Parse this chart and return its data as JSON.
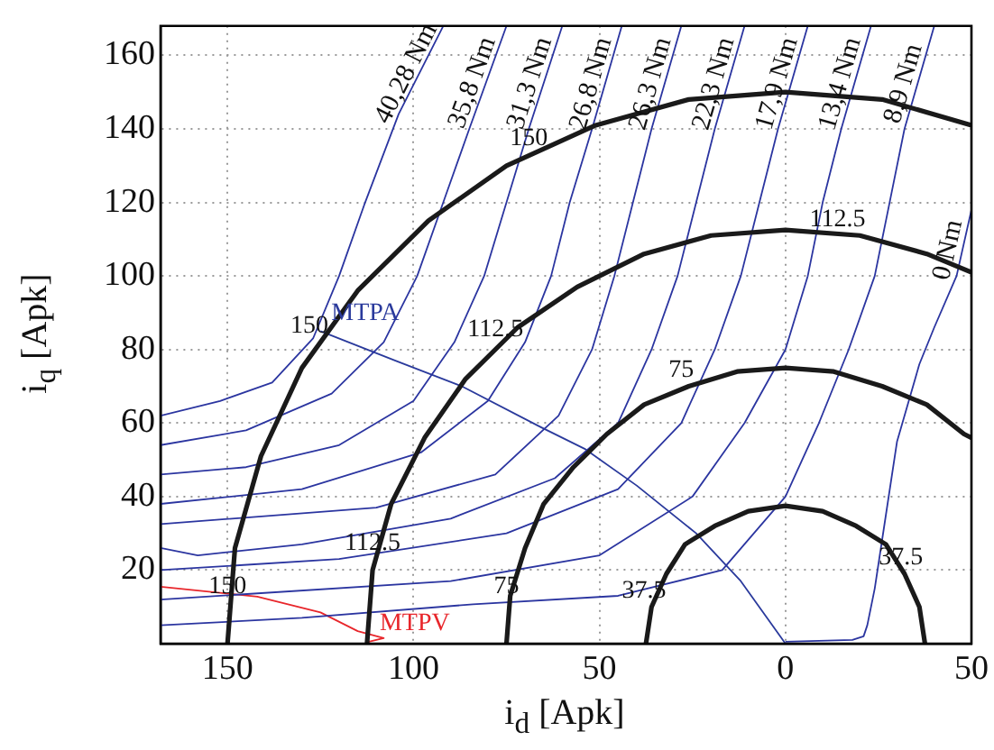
{
  "chart_data": {
    "type": "line",
    "xlabel": "i$_{d}$ [Apk]",
    "ylabel": "i$_{q}$ [Apk]",
    "xlim": [
      -168,
      50
    ],
    "xticks": [
      {
        "value": -150,
        "label": "150"
      },
      {
        "value": -100,
        "label": "100"
      },
      {
        "value": -50,
        "label": "50"
      },
      0,
      50
    ],
    "ylim": [
      0,
      168
    ],
    "yticks": [
      20,
      40,
      60,
      80,
      100,
      120,
      140,
      160
    ],
    "grid": true,
    "legend": false,
    "annotations": [
      {
        "text": "150",
        "x": -69,
        "y": 133
      },
      {
        "text": "150",
        "x": -128,
        "y": 82
      },
      {
        "text": "150",
        "x": -150,
        "y": 11
      },
      {
        "text": "112.5",
        "x": 14,
        "y": 111
      },
      {
        "text": "112.5",
        "x": -78,
        "y": 81
      },
      {
        "text": "112.5",
        "x": -111,
        "y": 23
      },
      {
        "text": "75",
        "x": -28,
        "y": 70
      },
      {
        "text": "75",
        "x": -75,
        "y": 11
      },
      {
        "text": "37.5",
        "x": -38,
        "y": 10
      },
      {
        "text": "37.5",
        "x": 31,
        "y": 19
      }
    ],
    "series": [
      {
        "color": "#1a1a1a",
        "x": [
          -150,
          -148,
          -141,
          -130,
          -115,
          -96,
          -75,
          -51,
          -26,
          0,
          26,
          50
        ],
        "values": [
          0,
          26,
          51,
          75,
          96,
          115,
          130,
          141,
          148,
          150,
          148,
          141
        ]
      },
      {
        "color": "#1a1a1a",
        "x": [
          -112.5,
          -111,
          -106,
          -97,
          -86,
          -72,
          -56,
          -38,
          -20,
          0,
          20,
          38,
          50
        ],
        "values": [
          0,
          20,
          38,
          56,
          72,
          86,
          97,
          106,
          111,
          112.5,
          111,
          106,
          101
        ]
      },
      {
        "color": "#1a1a1a",
        "x": [
          -75,
          -74,
          -70,
          -65,
          -57,
          -48,
          -38,
          -26,
          -13,
          0,
          13,
          26,
          38,
          48,
          50
        ],
        "values": [
          0,
          13,
          26,
          38,
          48,
          57,
          65,
          70,
          74,
          75,
          74,
          70,
          65,
          57,
          56
        ]
      },
      {
        "color": "#1a1a1a",
        "x": [
          -37.5,
          -36,
          -32,
          -27,
          -19,
          -10,
          0,
          10,
          19,
          27,
          32,
          36,
          37.5
        ],
        "values": [
          0,
          10,
          19,
          27,
          32,
          36,
          37.5,
          36,
          32,
          27,
          19,
          10,
          0
        ]
      },
      {
        "name": "40,28 Nm",
        "color": "#2b35a0",
        "x": [
          -92,
          -104,
          -113,
          -120,
          -127,
          -138,
          -152,
          -168
        ],
        "values": [
          168,
          144,
          120,
          100,
          83,
          71,
          66,
          62
        ]
      },
      {
        "name": "35,8 Nm",
        "color": "#2b35a0",
        "x": [
          -75,
          -85,
          -92,
          -99,
          -108,
          -122,
          -145,
          -168
        ],
        "values": [
          168,
          140,
          120,
          100,
          82,
          68,
          58,
          54
        ]
      },
      {
        "name": "31,3 Nm",
        "color": "#2b35a0",
        "x": [
          -60,
          -69,
          -75,
          -81,
          -89,
          -100,
          -120,
          -145,
          -168
        ],
        "values": [
          168,
          140,
          120,
          100,
          82,
          66,
          54,
          48,
          46
        ]
      },
      {
        "name": "26,8 Nm",
        "color": "#2b35a0",
        "x": [
          -44,
          -52,
          -58,
          -63,
          -70,
          -80,
          -98,
          -130,
          -168
        ],
        "values": [
          168,
          140,
          120,
          100,
          82,
          66,
          52,
          42,
          38
        ]
      },
      {
        "name": "26,3 Nm",
        "color": "#2b35a0",
        "x": [
          -28,
          -36,
          -41,
          -46,
          -52,
          -61,
          -78,
          -110,
          -168
        ],
        "values": [
          168,
          140,
          120,
          100,
          80,
          62,
          46,
          37,
          32.5
        ]
      },
      {
        "name": "22,3 Nm",
        "color": "#2b35a0",
        "x": [
          -11,
          -19,
          -24,
          -29,
          -36,
          -45,
          -62,
          -90,
          -130,
          -158,
          -168
        ],
        "values": [
          168,
          140,
          120,
          100,
          80,
          60,
          45,
          34,
          27,
          24,
          26
        ]
      },
      {
        "name": "17,9 Nm",
        "color": "#2b35a0",
        "x": [
          6,
          -2,
          -7,
          -12,
          -19,
          -28,
          -45,
          -75,
          -120,
          -168
        ],
        "values": [
          168,
          140,
          120,
          100,
          80,
          60,
          42,
          30,
          23,
          20
        ]
      },
      {
        "name": "13,4 Nm",
        "color": "#2b35a0",
        "x": [
          23,
          15,
          10,
          6,
          0,
          -11,
          -25,
          -50,
          -90,
          -168
        ],
        "values": [
          168,
          140,
          120,
          100,
          80,
          60,
          40,
          24,
          17,
          12
        ]
      },
      {
        "name": "8,9 Nm",
        "color": "#2b35a0",
        "x": [
          40,
          32,
          28,
          24,
          17,
          9,
          0,
          -17,
          -45,
          -84,
          -130,
          -168
        ],
        "values": [
          168,
          140,
          120,
          100,
          80,
          60,
          40,
          20,
          13,
          10.7,
          7,
          5
        ]
      },
      {
        "name": "0 Nm",
        "color": "#2b35a0",
        "x": [
          50,
          46,
          40,
          36,
          30,
          27,
          24,
          22,
          21,
          18,
          0
        ],
        "values": [
          118,
          100,
          86,
          76,
          55,
          35,
          15,
          5,
          2,
          1,
          0.5
        ]
      },
      {
        "name": "MTPA",
        "color": "#2a3a9c",
        "x": [
          -125,
          -105,
          -87,
          -66,
          -54,
          -40,
          -24,
          -12,
          0
        ],
        "values": [
          85,
          77,
          70,
          59,
          53,
          43,
          30,
          17,
          0
        ]
      },
      {
        "name": "MTPV",
        "color": "#e8262b",
        "x": [
          -112,
          -108,
          -115,
          -125,
          -142,
          -168
        ],
        "values": [
          0.5,
          1.5,
          3.4,
          8.5,
          12.8,
          15.5
        ]
      }
    ]
  }
}
